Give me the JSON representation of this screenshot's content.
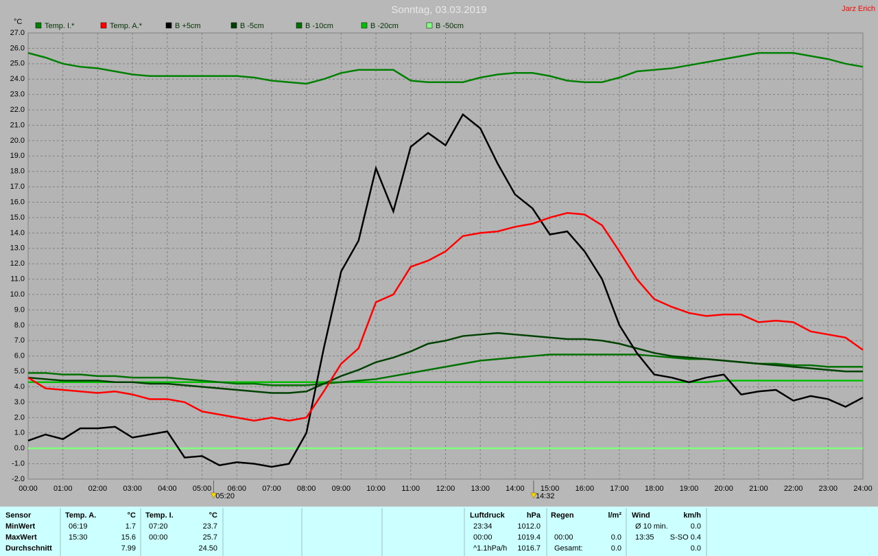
{
  "chart_data": {
    "type": "line",
    "title": "Sonntag, 03.03.2019",
    "author": "Jarz Erich",
    "y_label": "°C",
    "x": [
      0,
      0.5,
      1,
      1.5,
      2,
      2.5,
      3,
      3.5,
      4,
      4.5,
      5,
      5.5,
      6,
      6.5,
      7,
      7.5,
      8,
      8.5,
      9,
      9.5,
      10,
      10.5,
      11,
      11.5,
      12,
      12.5,
      13,
      13.5,
      14,
      14.5,
      15,
      15.5,
      16,
      16.5,
      17,
      17.5,
      18,
      18.5,
      19,
      19.5,
      20,
      20.5,
      21,
      21.5,
      22,
      22.5,
      23,
      23.5,
      24
    ],
    "series": [
      {
        "name": "Temp. I.*",
        "color": "#008000",
        "values": [
          25.7,
          25.4,
          25.0,
          24.8,
          24.7,
          24.5,
          24.3,
          24.2,
          24.2,
          24.2,
          24.2,
          24.2,
          24.2,
          24.1,
          23.9,
          23.8,
          23.7,
          24.0,
          24.4,
          24.6,
          24.6,
          24.6,
          23.9,
          23.8,
          23.8,
          23.8,
          24.1,
          24.3,
          24.4,
          24.4,
          24.2,
          23.9,
          23.8,
          23.8,
          24.1,
          24.5,
          24.6,
          24.7,
          24.9,
          25.1,
          25.3,
          25.5,
          25.7,
          25.7,
          25.7,
          25.5,
          25.3,
          25.0,
          24.8
        ]
      },
      {
        "name": "Temp. A.*",
        "color": "#ff0000",
        "values": [
          4.6,
          3.9,
          3.8,
          3.7,
          3.6,
          3.7,
          3.5,
          3.2,
          3.2,
          3.0,
          2.4,
          2.2,
          2.0,
          1.8,
          2.0,
          1.8,
          2.0,
          3.7,
          5.5,
          6.5,
          9.5,
          10.0,
          11.8,
          12.2,
          12.8,
          13.8,
          14.0,
          14.1,
          14.4,
          14.6,
          15.0,
          15.3,
          15.2,
          14.5,
          12.8,
          11.0,
          9.7,
          9.2,
          8.8,
          8.6,
          8.7,
          8.7,
          8.2,
          8.3,
          8.2,
          7.6,
          7.4,
          7.2,
          6.4
        ]
      },
      {
        "name": "B +5cm",
        "color": "#000000",
        "values": [
          0.5,
          0.9,
          0.6,
          1.3,
          1.3,
          1.4,
          0.7,
          0.9,
          1.1,
          -0.6,
          -0.5,
          -1.1,
          -0.9,
          -1.0,
          -1.2,
          -1.0,
          1.0,
          6.5,
          11.5,
          13.5,
          18.2,
          15.4,
          19.6,
          20.5,
          19.7,
          21.7,
          20.8,
          18.5,
          16.5,
          15.6,
          13.9,
          14.1,
          12.8,
          11.0,
          8.0,
          6.2,
          4.8,
          4.6,
          4.3,
          4.6,
          4.8,
          3.5,
          3.7,
          3.8,
          3.1,
          3.4,
          3.2,
          2.7,
          3.3
        ]
      },
      {
        "name": "B -5cm",
        "color": "#004000",
        "values": [
          4.6,
          4.5,
          4.4,
          4.4,
          4.4,
          4.3,
          4.3,
          4.2,
          4.2,
          4.1,
          4.0,
          3.9,
          3.8,
          3.7,
          3.6,
          3.6,
          3.7,
          4.2,
          4.7,
          5.1,
          5.6,
          5.9,
          6.3,
          6.8,
          7.0,
          7.3,
          7.4,
          7.5,
          7.4,
          7.3,
          7.2,
          7.1,
          7.1,
          7.0,
          6.8,
          6.5,
          6.2,
          6.0,
          5.9,
          5.8,
          5.7,
          5.6,
          5.5,
          5.4,
          5.3,
          5.2,
          5.1,
          5.0,
          5.0
        ]
      },
      {
        "name": "B -10cm",
        "color": "#007000",
        "values": [
          4.9,
          4.9,
          4.8,
          4.8,
          4.7,
          4.7,
          4.6,
          4.6,
          4.6,
          4.5,
          4.4,
          4.3,
          4.2,
          4.2,
          4.1,
          4.1,
          4.1,
          4.2,
          4.3,
          4.4,
          4.5,
          4.7,
          4.9,
          5.1,
          5.3,
          5.5,
          5.7,
          5.8,
          5.9,
          6.0,
          6.1,
          6.1,
          6.1,
          6.1,
          6.1,
          6.1,
          6.0,
          5.9,
          5.8,
          5.8,
          5.7,
          5.6,
          5.5,
          5.5,
          5.4,
          5.4,
          5.3,
          5.3,
          5.3
        ]
      },
      {
        "name": "B -20cm",
        "color": "#00c000",
        "values": [
          4.3,
          4.3,
          4.3,
          4.3,
          4.3,
          4.3,
          4.3,
          4.3,
          4.3,
          4.3,
          4.3,
          4.3,
          4.3,
          4.3,
          4.3,
          4.3,
          4.3,
          4.3,
          4.3,
          4.3,
          4.3,
          4.3,
          4.3,
          4.3,
          4.3,
          4.3,
          4.3,
          4.3,
          4.3,
          4.3,
          4.3,
          4.3,
          4.3,
          4.3,
          4.3,
          4.3,
          4.3,
          4.3,
          4.3,
          4.3,
          4.4,
          4.4,
          4.4,
          4.4,
          4.4,
          4.4,
          4.4,
          4.4,
          4.4
        ]
      },
      {
        "name": "B -50cm",
        "color": "#80ff80",
        "values": [
          0,
          0,
          0,
          0,
          0,
          0,
          0,
          0,
          0,
          0,
          0,
          0,
          0,
          0,
          0,
          0,
          0,
          0,
          0,
          0,
          0,
          0,
          0,
          0,
          0,
          0,
          0,
          0,
          0,
          0,
          0,
          0,
          0,
          0,
          0,
          0,
          0,
          0,
          0,
          0,
          0,
          0,
          0,
          0,
          0,
          0,
          0,
          0,
          0
        ]
      }
    ],
    "xlim": [
      0,
      24
    ],
    "xticks": [
      {
        "value": 0,
        "label": "00:00"
      },
      {
        "value": 1,
        "label": "01:00"
      },
      {
        "value": 2,
        "label": "02:00"
      },
      {
        "value": 3,
        "label": "03:00"
      },
      {
        "value": 4,
        "label": "04:00"
      },
      {
        "value": 5,
        "label": "05:00"
      },
      {
        "value": 6,
        "label": "06:00"
      },
      {
        "value": 7,
        "label": "07:00"
      },
      {
        "value": 8,
        "label": "08:00"
      },
      {
        "value": 9,
        "label": "09:00"
      },
      {
        "value": 10,
        "label": "10:00"
      },
      {
        "value": 11,
        "label": "11:00"
      },
      {
        "value": 12,
        "label": "12:00"
      },
      {
        "value": 13,
        "label": "13:00"
      },
      {
        "value": 14,
        "label": "14:00"
      },
      {
        "value": 15,
        "label": "15:00"
      },
      {
        "value": 16,
        "label": "16:00"
      },
      {
        "value": 17,
        "label": "17:00"
      },
      {
        "value": 18,
        "label": "18:00"
      },
      {
        "value": 19,
        "label": "19:00"
      },
      {
        "value": 20,
        "label": "20:00"
      },
      {
        "value": 21,
        "label": "21:00"
      },
      {
        "value": 22,
        "label": "22:00"
      },
      {
        "value": 23,
        "label": "23:00"
      },
      {
        "value": 24,
        "label": "24:00"
      }
    ],
    "ylim": [
      -2,
      27
    ],
    "yticks": [
      {
        "value": -2,
        "label": "-2.0"
      },
      {
        "value": -1,
        "label": "-1.0"
      },
      {
        "value": 0,
        "label": "0.0"
      },
      {
        "value": 1,
        "label": "1.0"
      },
      {
        "value": 2,
        "label": "2.0"
      },
      {
        "value": 3,
        "label": "3.0"
      },
      {
        "value": 4,
        "label": "4.0"
      },
      {
        "value": 5,
        "label": "5.0"
      },
      {
        "value": 6,
        "label": "6.0"
      },
      {
        "value": 7,
        "label": "7.0"
      },
      {
        "value": 8,
        "label": "8.0"
      },
      {
        "value": 9,
        "label": "9.0"
      },
      {
        "value": 10,
        "label": "10.0"
      },
      {
        "value": 11,
        "label": "11.0"
      },
      {
        "value": 12,
        "label": "12.0"
      },
      {
        "value": 13,
        "label": "13.0"
      },
      {
        "value": 14,
        "label": "14.0"
      },
      {
        "value": 15,
        "label": "15.0"
      },
      {
        "value": 16,
        "label": "16.0"
      },
      {
        "value": 17,
        "label": "17.0"
      },
      {
        "value": 18,
        "label": "18.0"
      },
      {
        "value": 19,
        "label": "19.0"
      },
      {
        "value": 20,
        "label": "20.0"
      },
      {
        "value": 21,
        "label": "21.0"
      },
      {
        "value": 22,
        "label": "22.0"
      },
      {
        "value": 23,
        "label": "23.0"
      },
      {
        "value": 24,
        "label": "24.0"
      },
      {
        "value": 25,
        "label": "25.0"
      },
      {
        "value": 26,
        "label": "26.0"
      },
      {
        "value": 27,
        "label": "27.0"
      }
    ],
    "grid": true,
    "annotations": [
      {
        "x": 5.333,
        "label": "05:20"
      },
      {
        "x": 14.533,
        "label": "14:32"
      }
    ]
  },
  "table": {
    "sensor": {
      "header": "Sensor",
      "rows": [
        "MinWert",
        "MaxWert",
        "Durchschnitt"
      ]
    },
    "blocks": [
      {
        "header": "Temp. A.",
        "unit": "°C",
        "rows": [
          {
            "t": "06:19",
            "v": "1.7"
          },
          {
            "t": "15:30",
            "v": "15.6"
          },
          {
            "v": "7.99"
          }
        ]
      },
      {
        "header": "Temp. I.",
        "unit": "°C",
        "rows": [
          {
            "t": "07:20",
            "v": "23.7"
          },
          {
            "t": "00:00",
            "v": "25.7"
          },
          {
            "v": "24.50"
          }
        ]
      },
      {
        "header": "Luftdruck",
        "unit": "hPa",
        "rows": [
          {
            "t": "23:34",
            "v": "1012.0"
          },
          {
            "t": "00:00",
            "v": "1019.4"
          },
          {
            "t": "^1.1hPa/h",
            "v": "1016.7"
          }
        ]
      },
      {
        "header": "Regen",
        "unit": "l/m²",
        "rows": [
          {},
          {
            "t": "00:00",
            "v": "0.0"
          },
          {
            "t": "Gesamt:",
            "v": "0.0"
          }
        ]
      },
      {
        "header": "Wind",
        "unit": "km/h",
        "rows": [
          {
            "t": "Ø 10 min.",
            "v": "0.0"
          },
          {
            "t": "13:35",
            "v": "S-SO 0.4"
          },
          {
            "v": "0.0"
          }
        ]
      }
    ]
  }
}
